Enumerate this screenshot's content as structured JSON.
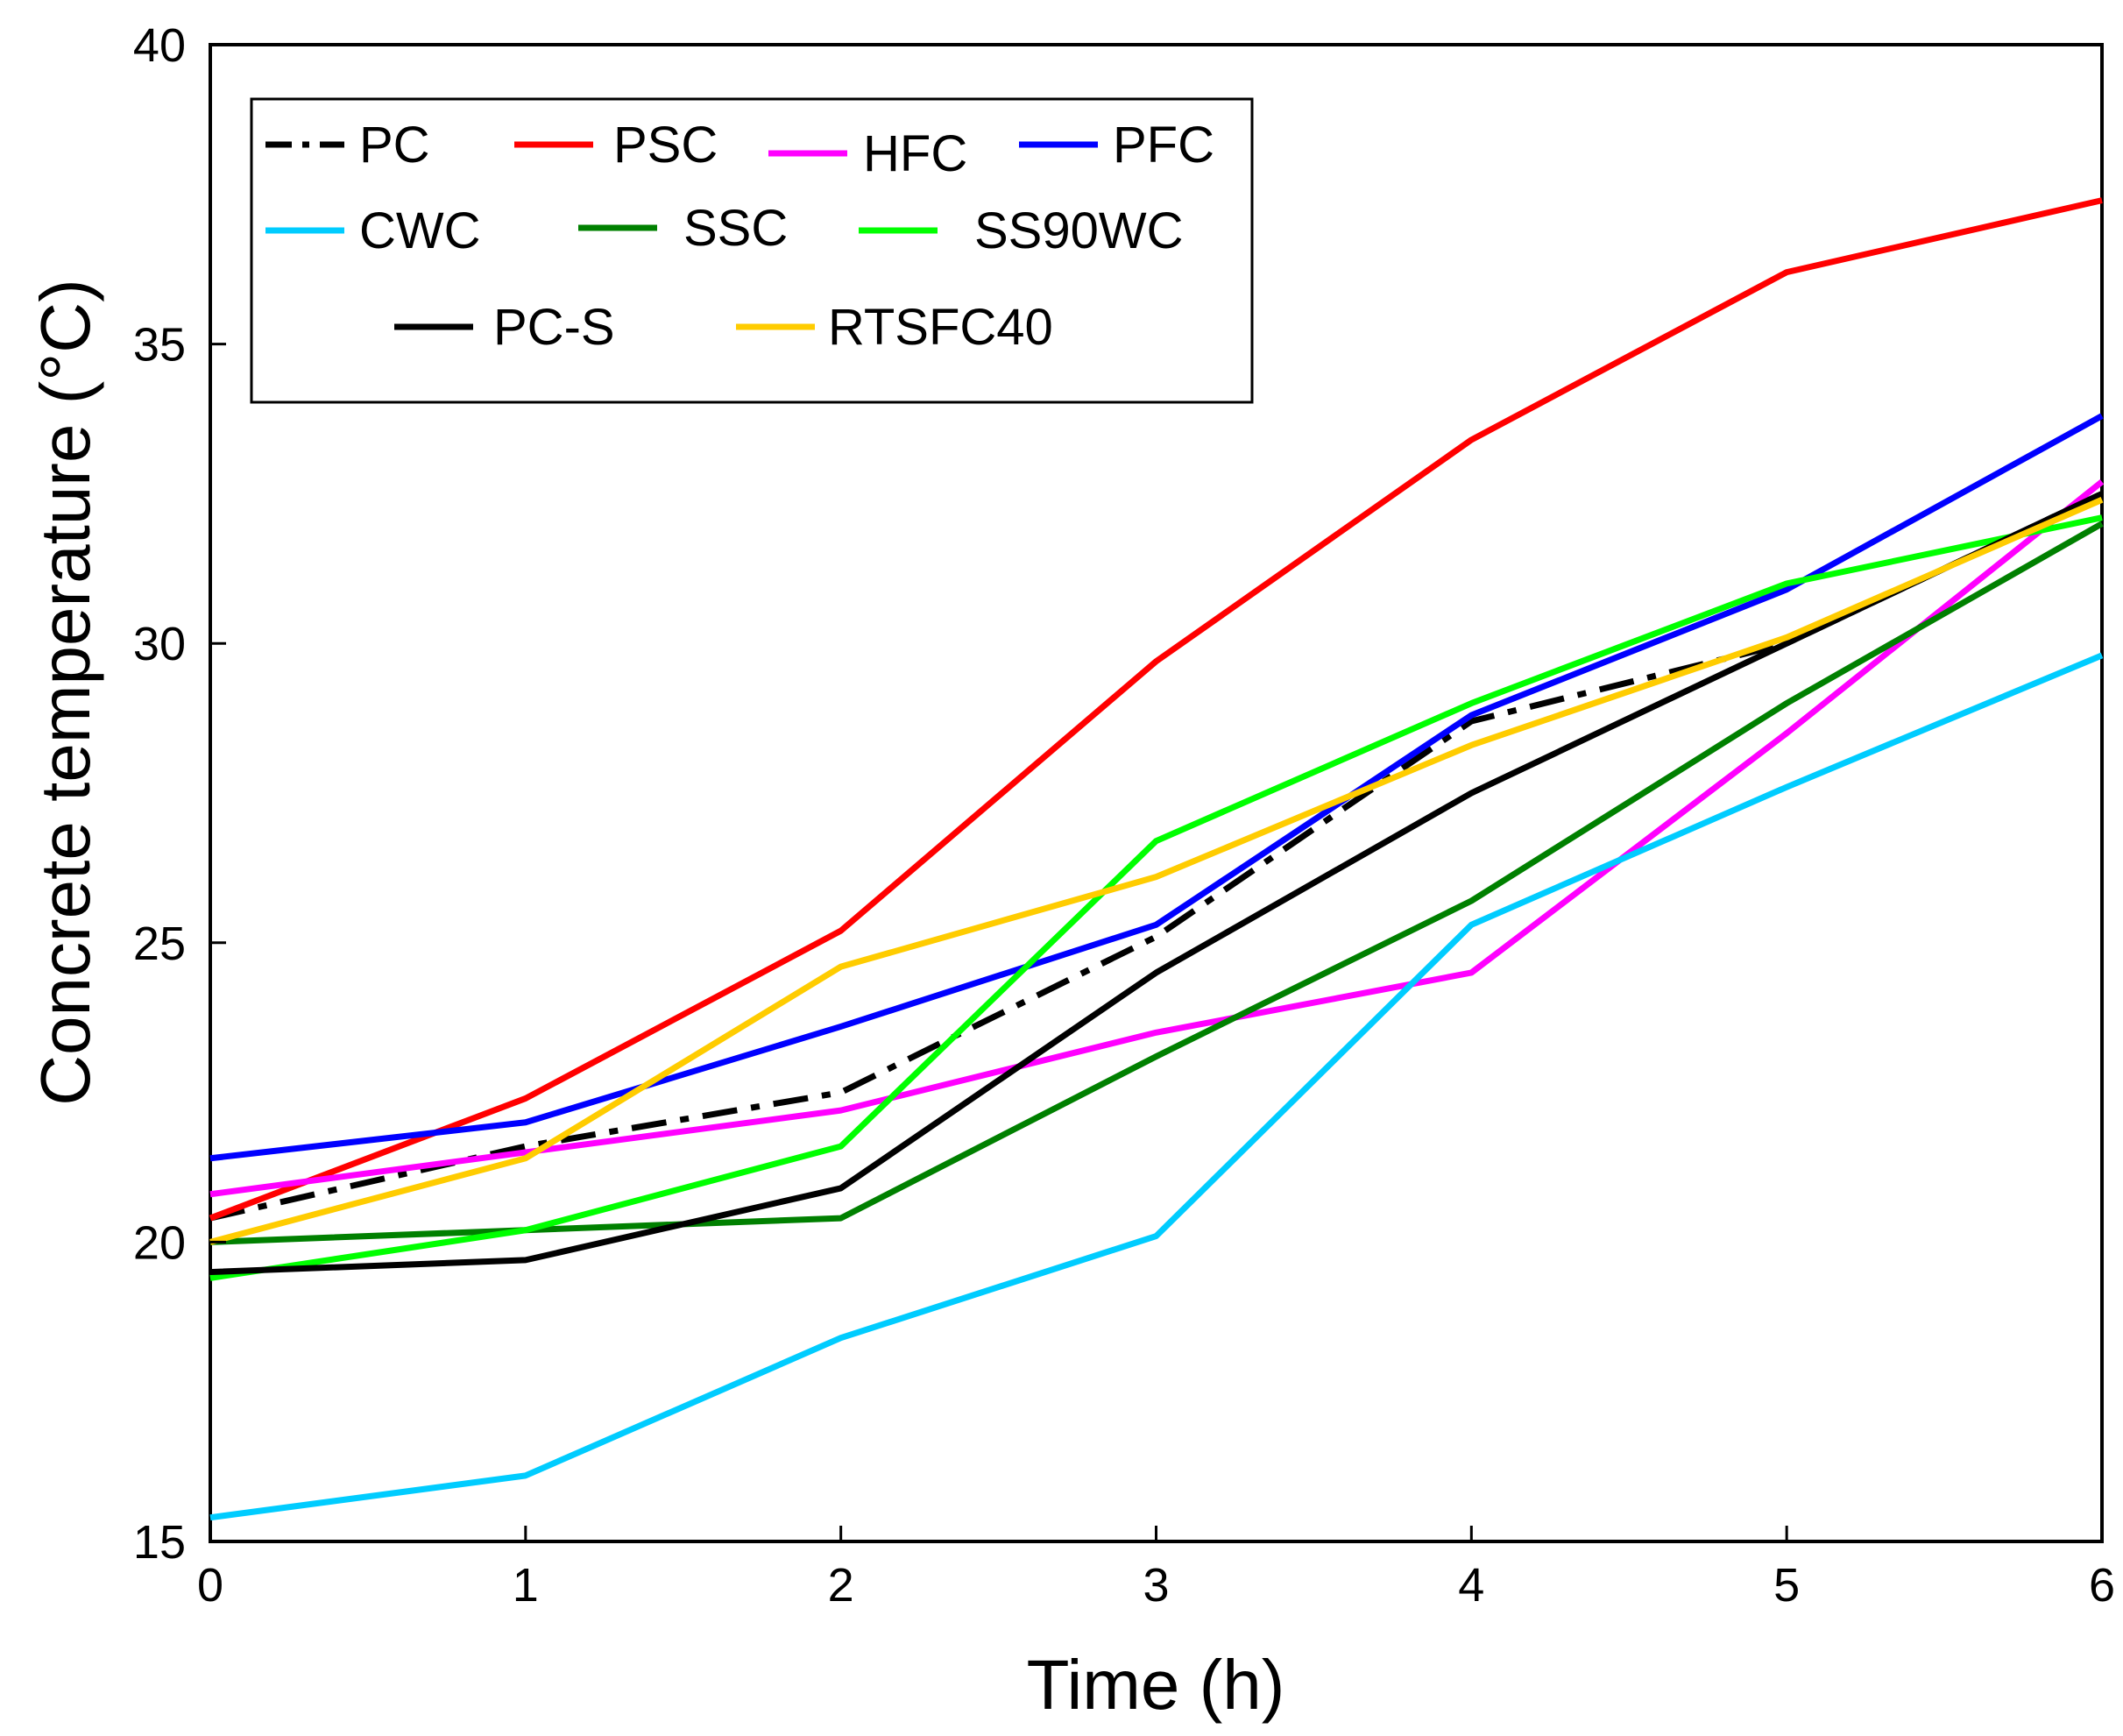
{
  "chart_data": {
    "type": "line",
    "title": "",
    "xlabel": "Time (h)",
    "ylabel": "Concrete temperature (°C)",
    "xlim": [
      0,
      6
    ],
    "ylim": [
      15,
      40
    ],
    "x_ticks": [
      "0",
      "1",
      "2",
      "3",
      "4",
      "5",
      "6"
    ],
    "y_ticks": [
      "15",
      "20",
      "25",
      "30",
      "35",
      "40"
    ],
    "grid": false,
    "legend_position": "top-left",
    "x": [
      0,
      1,
      2,
      3,
      4,
      5,
      6
    ],
    "series": [
      {
        "name": "PC",
        "color": "#000000",
        "dash": "dashdot",
        "values": [
          20.4,
          21.6,
          22.5,
          25.1,
          28.7,
          30.0,
          32.5
        ]
      },
      {
        "name": "PSC",
        "color": "#ff0000",
        "dash": "solid",
        "values": [
          20.4,
          22.4,
          25.2,
          29.7,
          33.4,
          36.2,
          37.4
        ]
      },
      {
        "name": "HFC",
        "color": "#ff00ff",
        "dash": "solid",
        "values": [
          20.8,
          21.5,
          22.2,
          23.5,
          24.5,
          28.5,
          32.7
        ]
      },
      {
        "name": "PFC",
        "color": "#0000ff",
        "dash": "solid",
        "values": [
          21.4,
          22.0,
          23.6,
          25.3,
          28.8,
          30.9,
          33.8
        ]
      },
      {
        "name": "CWC",
        "color": "#00ccff",
        "dash": "solid",
        "values": [
          15.4,
          16.1,
          18.4,
          20.1,
          25.3,
          27.6,
          29.8
        ]
      },
      {
        "name": "SSC",
        "color": "#008000",
        "dash": "solid",
        "values": [
          20.0,
          20.2,
          20.4,
          23.1,
          25.7,
          29.0,
          32.0
        ]
      },
      {
        "name": "SS90WC",
        "color": "#00ff00",
        "dash": "solid",
        "values": [
          19.4,
          20.2,
          21.6,
          26.7,
          29.0,
          31.0,
          32.1
        ]
      },
      {
        "name": "PC-S",
        "color": "#000000",
        "dash": "solid",
        "values": [
          19.5,
          19.7,
          20.9,
          24.5,
          27.5,
          30.0,
          32.5
        ]
      },
      {
        "name": "RTSFC40",
        "color": "#ffcc00",
        "dash": "solid",
        "values": [
          20.0,
          21.4,
          24.6,
          26.1,
          28.3,
          30.1,
          32.4
        ]
      }
    ]
  }
}
